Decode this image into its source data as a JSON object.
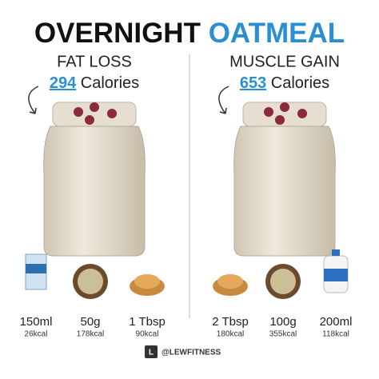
{
  "title": [
    "OVERNIGHT",
    "OATMEAL"
  ],
  "columns": [
    {
      "goal": "FAT LOSS",
      "calories": 294,
      "calories_label": "Calories",
      "ingredients": [
        {
          "amount": "150ml",
          "kcal": "26kcal"
        },
        {
          "amount": "50g",
          "kcal": "178kcal"
        },
        {
          "amount": "1 Tbsp",
          "kcal": "90kcal"
        }
      ]
    },
    {
      "goal": "MUSCLE GAIN",
      "calories": 653,
      "calories_label": "Calories",
      "ingredients": [
        {
          "amount": "2 Tbsp",
          "kcal": "180kcal"
        },
        {
          "amount": "100g",
          "kcal": "355kcal"
        },
        {
          "amount": "200ml",
          "kcal": "118kcal"
        }
      ]
    }
  ],
  "footer": "@LEWFITNESS"
}
